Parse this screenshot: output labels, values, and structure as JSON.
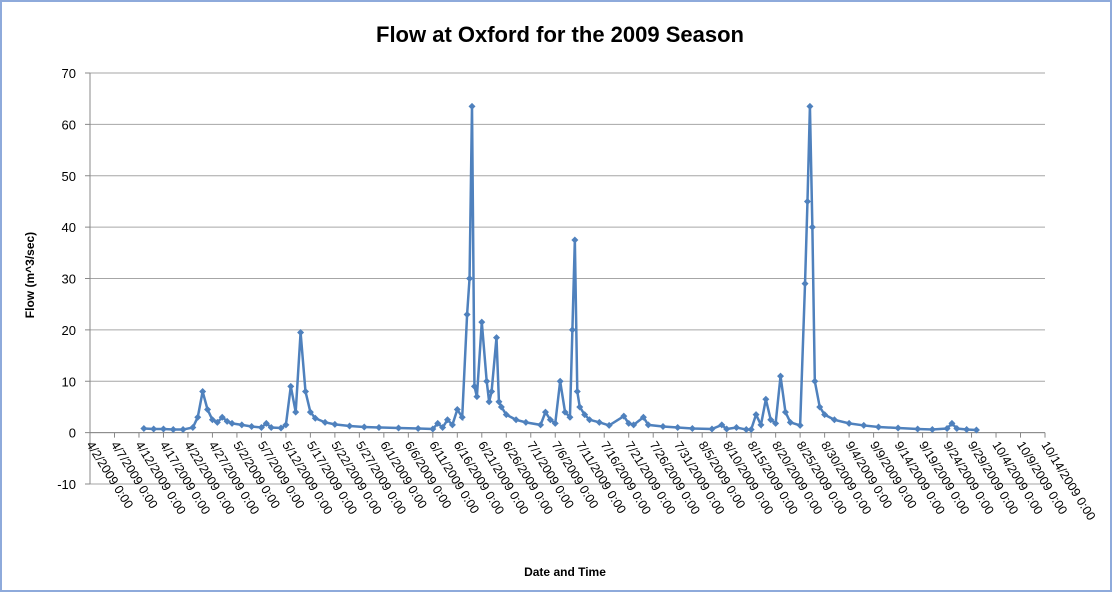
{
  "chart_data": {
    "type": "line",
    "title": "Flow at Oxford for the 2009 Season",
    "x_label": "Date and Time",
    "y_label": "Flow (m^3/sec)",
    "x": [
      "2009-04-13",
      "2009-04-15",
      "2009-04-17",
      "2009-04-19",
      "2009-04-21",
      "2009-04-23",
      "2009-04-24",
      "2009-04-25",
      "2009-04-26",
      "2009-04-27",
      "2009-04-28",
      "2009-04-29",
      "2009-04-30",
      "2009-05-01",
      "2009-05-03",
      "2009-05-05",
      "2009-05-07",
      "2009-05-08",
      "2009-05-09",
      "2009-05-11",
      "2009-05-12",
      "2009-05-13",
      "2009-05-14",
      "2009-05-15",
      "2009-05-16",
      "2009-05-17",
      "2009-05-18",
      "2009-05-20",
      "2009-05-22",
      "2009-05-25",
      "2009-05-28",
      "2009-05-31",
      "2009-06-04",
      "2009-06-08",
      "2009-06-11",
      "2009-06-12",
      "2009-06-13",
      "2009-06-14",
      "2009-06-15",
      "2009-06-16",
      "2009-06-17",
      "2009-06-18",
      "2009-06-18T12:00",
      "2009-06-19",
      "2009-06-19T12:00",
      "2009-06-20",
      "2009-06-21",
      "2009-06-22",
      "2009-06-22T12:00",
      "2009-06-23",
      "2009-06-24",
      "2009-06-24T12:00",
      "2009-06-25",
      "2009-06-26",
      "2009-06-28",
      "2009-06-30",
      "2009-07-03",
      "2009-07-04",
      "2009-07-05",
      "2009-07-06",
      "2009-07-07",
      "2009-07-08",
      "2009-07-09",
      "2009-07-09T12:00",
      "2009-07-10",
      "2009-07-10T12:00",
      "2009-07-11",
      "2009-07-12",
      "2009-07-13",
      "2009-07-15",
      "2009-07-17",
      "2009-07-20",
      "2009-07-21",
      "2009-07-22",
      "2009-07-24",
      "2009-07-25",
      "2009-07-28",
      "2009-07-31",
      "2009-08-03",
      "2009-08-07",
      "2009-08-09",
      "2009-08-10",
      "2009-08-12",
      "2009-08-14",
      "2009-08-15",
      "2009-08-16",
      "2009-08-17",
      "2009-08-18",
      "2009-08-19",
      "2009-08-20",
      "2009-08-21",
      "2009-08-22",
      "2009-08-23",
      "2009-08-25",
      "2009-08-26",
      "2009-08-26T12:00",
      "2009-08-27",
      "2009-08-27T12:00",
      "2009-08-28",
      "2009-08-29",
      "2009-08-30",
      "2009-09-01",
      "2009-09-04",
      "2009-09-07",
      "2009-09-10",
      "2009-09-14",
      "2009-09-18",
      "2009-09-21",
      "2009-09-24",
      "2009-09-25",
      "2009-09-26",
      "2009-09-28",
      "2009-09-30"
    ],
    "series": [
      {
        "name": "Flow",
        "color": "#4f81bd",
        "values": [
          0.8,
          0.7,
          0.7,
          0.6,
          0.6,
          1.0,
          3.0,
          8.0,
          4.5,
          2.5,
          2.0,
          3.0,
          2.2,
          1.8,
          1.5,
          1.2,
          1.0,
          1.8,
          1.0,
          0.9,
          1.5,
          9.0,
          4.0,
          19.5,
          8.0,
          4.0,
          2.8,
          2.0,
          1.6,
          1.3,
          1.1,
          1.0,
          0.9,
          0.8,
          0.7,
          1.8,
          1.0,
          2.5,
          1.5,
          4.5,
          3.0,
          23,
          30,
          63.5,
          9,
          7,
          21.5,
          10,
          6,
          8,
          18.5,
          6,
          5,
          3.5,
          2.5,
          2.0,
          1.5,
          4,
          2.5,
          1.8,
          10,
          4,
          3,
          20,
          37.5,
          8,
          5,
          3.5,
          2.5,
          2.0,
          1.4,
          3.2,
          1.8,
          1.5,
          3.0,
          1.5,
          1.2,
          1.0,
          0.8,
          0.7,
          1.5,
          0.7,
          1.0,
          0.6,
          0.6,
          3.5,
          1.5,
          6.5,
          2.5,
          1.8,
          11,
          4,
          2.0,
          1.4,
          29,
          45,
          63.5,
          40,
          10,
          5,
          3.5,
          2.5,
          1.8,
          1.4,
          1.1,
          0.9,
          0.7,
          0.6,
          0.8,
          1.8,
          0.8,
          0.6,
          0.5
        ]
      }
    ],
    "ylim": [
      -10,
      70
    ],
    "yticks": [
      -10,
      0,
      10,
      20,
      30,
      40,
      50,
      60,
      70
    ],
    "grid": true,
    "xlim": [
      "2009-04-02",
      "2009-10-14"
    ],
    "xticks": [
      {
        "value": "2009-04-02",
        "label": "4/2/2009 0:00"
      },
      {
        "value": "2009-04-07",
        "label": "4/7/2009 0:00"
      },
      {
        "value": "2009-04-12",
        "label": "4/12/2009 0:00"
      },
      {
        "value": "2009-04-17",
        "label": "4/17/2009 0:00"
      },
      {
        "value": "2009-04-22",
        "label": "4/22/2009 0:00"
      },
      {
        "value": "2009-04-27",
        "label": "4/27/2009 0:00"
      },
      {
        "value": "2009-05-02",
        "label": "5/2/2009 0:00"
      },
      {
        "value": "2009-05-07",
        "label": "5/7/2009 0:00"
      },
      {
        "value": "2009-05-12",
        "label": "5/12/2009 0:00"
      },
      {
        "value": "2009-05-17",
        "label": "5/17/2009 0:00"
      },
      {
        "value": "2009-05-22",
        "label": "5/22/2009 0:00"
      },
      {
        "value": "2009-05-27",
        "label": "5/27/2009 0:00"
      },
      {
        "value": "2009-06-01",
        "label": "6/1/2009 0:00"
      },
      {
        "value": "2009-06-06",
        "label": "6/6/2009 0:00"
      },
      {
        "value": "2009-06-11",
        "label": "6/11/2009 0:00"
      },
      {
        "value": "2009-06-16",
        "label": "6/16/2009 0:00"
      },
      {
        "value": "2009-06-21",
        "label": "6/21/2009 0:00"
      },
      {
        "value": "2009-06-26",
        "label": "6/26/2009 0:00"
      },
      {
        "value": "2009-07-01",
        "label": "7/1/2009 0:00"
      },
      {
        "value": "2009-07-06",
        "label": "7/6/2009 0:00"
      },
      {
        "value": "2009-07-11",
        "label": "7/11/2009 0:00"
      },
      {
        "value": "2009-07-16",
        "label": "7/16/2009 0:00"
      },
      {
        "value": "2009-07-21",
        "label": "7/21/2009 0:00"
      },
      {
        "value": "2009-07-26",
        "label": "7/26/2009 0:00"
      },
      {
        "value": "2009-07-31",
        "label": "7/31/2009 0:00"
      },
      {
        "value": "2009-08-05",
        "label": "8/5/2009 0:00"
      },
      {
        "value": "2009-08-10",
        "label": "8/10/2009 0:00"
      },
      {
        "value": "2009-08-15",
        "label": "8/15/2009 0:00"
      },
      {
        "value": "2009-08-20",
        "label": "8/20/2009 0:00"
      },
      {
        "value": "2009-08-25",
        "label": "8/25/2009 0:00"
      },
      {
        "value": "2009-08-30",
        "label": "8/30/2009 0:00"
      },
      {
        "value": "2009-09-04",
        "label": "9/4/2009 0:00"
      },
      {
        "value": "2009-09-09",
        "label": "9/9/2009 0:00"
      },
      {
        "value": "2009-09-14",
        "label": "9/14/2009 0:00"
      },
      {
        "value": "2009-09-19",
        "label": "9/19/2009 0:00"
      },
      {
        "value": "2009-09-24",
        "label": "9/24/2009 0:00"
      },
      {
        "value": "2009-09-29",
        "label": "9/29/2009 0:00"
      },
      {
        "value": "2009-10-04",
        "label": "10/4/2009 0:00"
      },
      {
        "value": "2009-10-09",
        "label": "10/9/2009 0:00"
      },
      {
        "value": "2009-10-14",
        "label": "10/14/2009 0:00"
      }
    ]
  }
}
